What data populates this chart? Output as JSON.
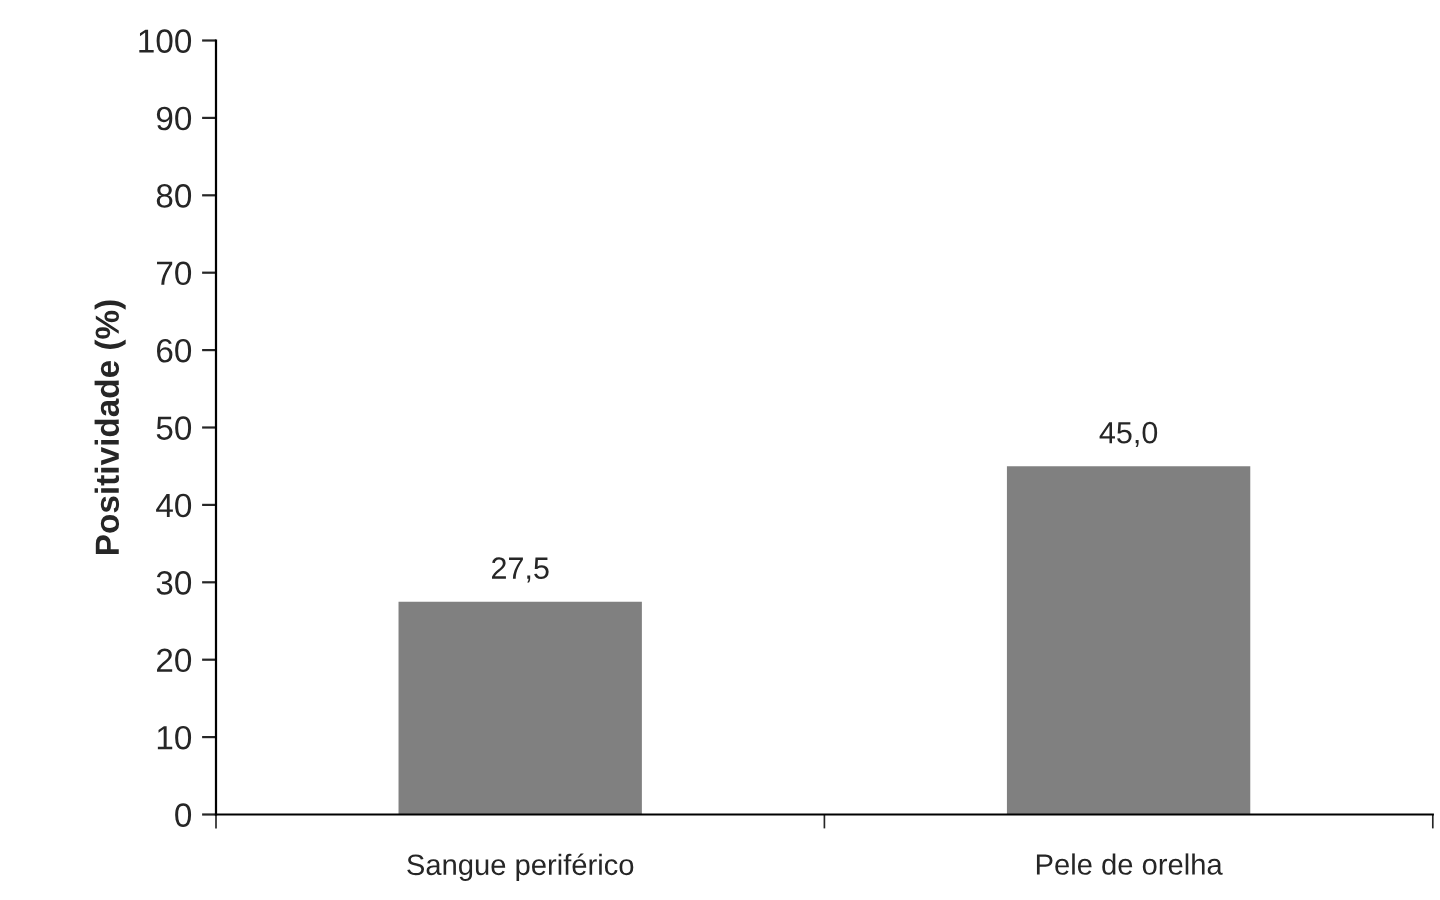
{
  "chart_data": {
    "type": "bar",
    "ylabel": "Positividade (%)",
    "categories": [
      "Sangue periférico",
      "Pele de orelha"
    ],
    "values": [
      27.5,
      45.0
    ],
    "value_labels": [
      "27,5",
      "45,0"
    ],
    "color": "#808080",
    "ylim": [
      0,
      100
    ],
    "yticks": [
      0,
      10,
      20,
      30,
      40,
      50,
      60,
      70,
      80,
      90,
      100
    ],
    "grid": false,
    "legend": false
  }
}
